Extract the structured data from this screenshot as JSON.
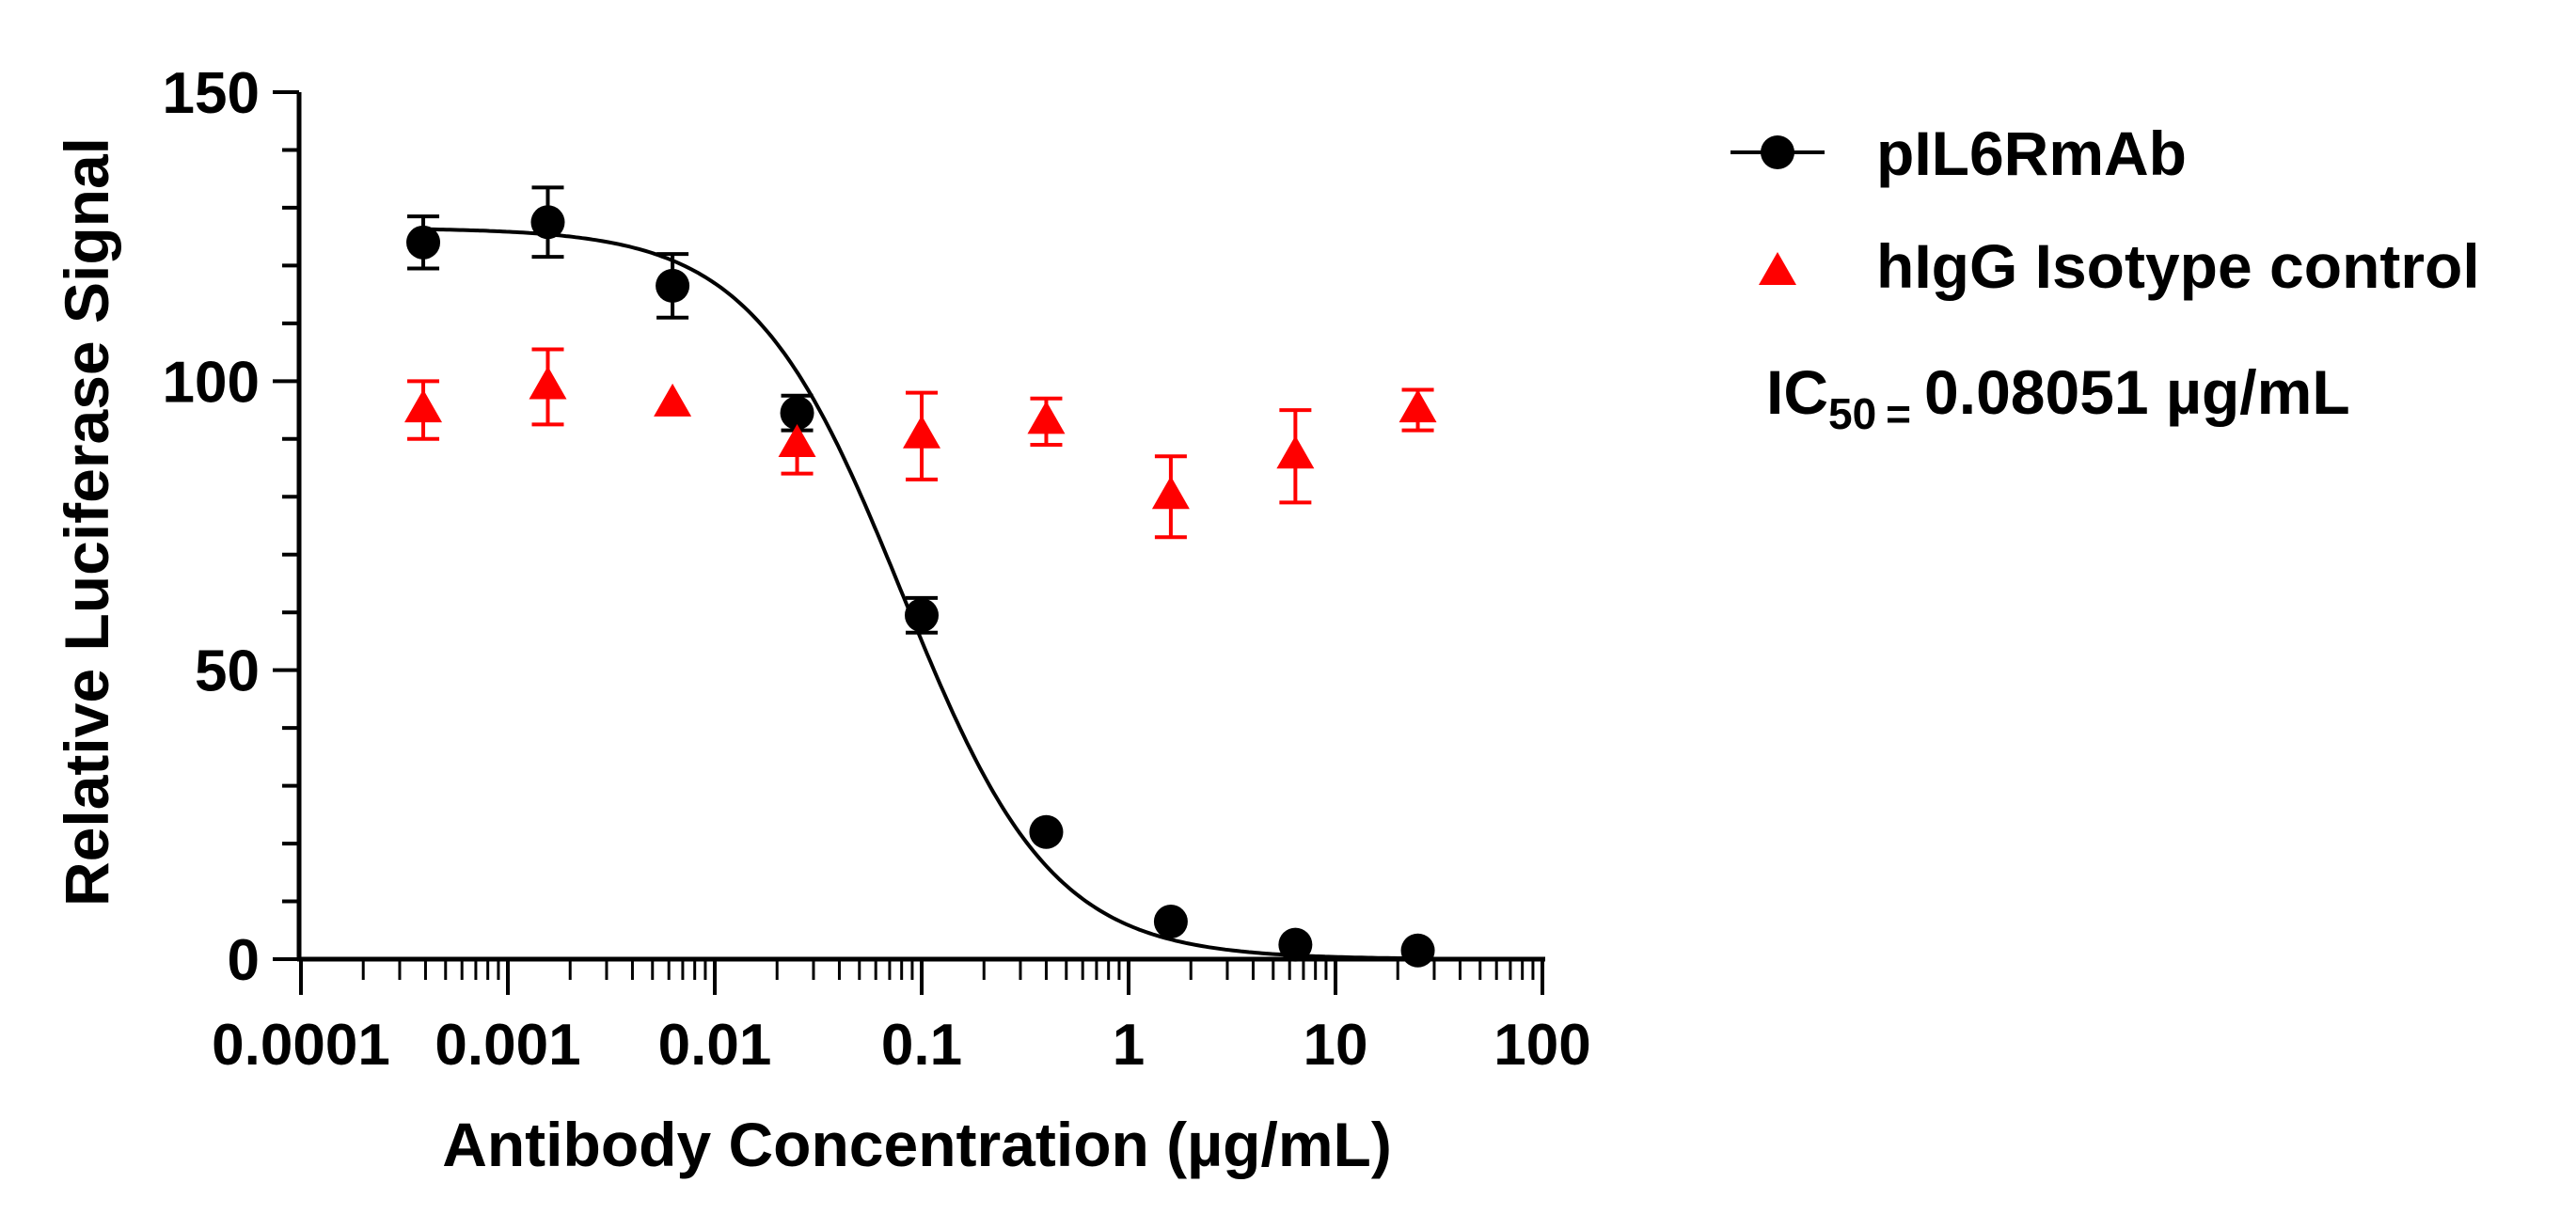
{
  "chart_data": {
    "type": "scatter",
    "xlabel": "Antibody Concentration (µg/mL)",
    "ylabel": "Relative Luciferase Signal",
    "xscale": "log10",
    "xlim": [
      0.0001,
      100
    ],
    "ylim": [
      0,
      150
    ],
    "x_tick_labels": [
      "0.0001",
      "0.001",
      "0.01",
      "0.1",
      "1",
      "10",
      "100"
    ],
    "y_tick_labels": [
      "0",
      "50",
      "100",
      "150"
    ],
    "legend_position": "right",
    "series": [
      {
        "name": "pIL6RmAb",
        "marker": "circle",
        "color": "#000000",
        "x": [
          0.00039,
          0.00156,
          0.00625,
          0.025,
          0.1,
          0.4,
          1.6,
          6.4,
          25
        ],
        "values": [
          124,
          127.5,
          116.5,
          94.5,
          59.5,
          22,
          6.5,
          2.5,
          1.5
        ],
        "error": [
          4.5,
          6,
          5.5,
          3,
          3,
          0.5,
          0.5,
          0.5,
          0.5
        ],
        "fit": {
          "model": "four-parameter logistic",
          "top": 126.5,
          "bottom": 0,
          "ic50": 0.08051,
          "hill": 1.2
        }
      },
      {
        "name": "hIgG Isotype control",
        "marker": "triangle",
        "color": "#ff0000",
        "x": [
          0.00039,
          0.00156,
          0.00625,
          0.025,
          0.1,
          0.4,
          1.6,
          6.4,
          25
        ],
        "values": [
          95,
          99,
          96,
          89,
          90.5,
          93,
          80,
          87,
          95
        ],
        "error": [
          5,
          6.5,
          0,
          5,
          7.5,
          4,
          7,
          8,
          3.5
        ]
      }
    ],
    "annotation": {
      "prefix": "IC",
      "subscript": "50",
      "equals": "=",
      "value": "0.08051 µg/mL"
    }
  }
}
